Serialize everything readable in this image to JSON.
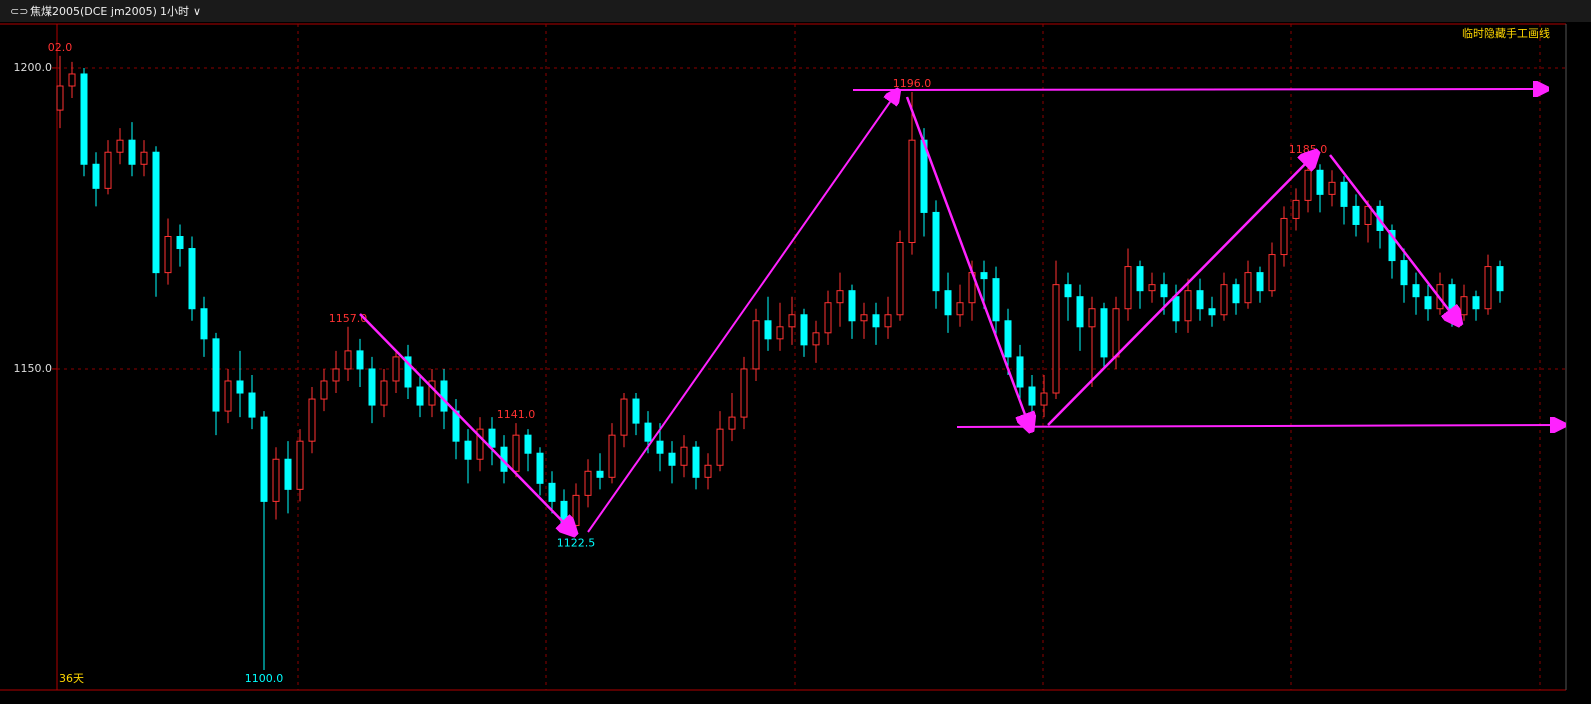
{
  "header": {
    "title": "焦煤2005(DCE jm2005)",
    "period": "1小时",
    "button": "临时隐藏手工画线"
  },
  "chart_data": {
    "type": "candlestick",
    "footer_label": "36天",
    "up_color": "#ff3232",
    "down_color": "#00ffff",
    "ylim": [
      1097,
      1207.3
    ],
    "yticks": [
      {
        "value": 1150,
        "label": "1150.0"
      },
      {
        "value": 1200,
        "label": "1200.0"
      }
    ],
    "grid": true,
    "open": [
      1193,
      1197,
      1199,
      1184,
      1180,
      1186,
      1188,
      1184,
      1186,
      1166,
      1172,
      1170,
      1160,
      1155,
      1143,
      1148,
      1146,
      1142,
      1128,
      1135,
      1130,
      1138,
      1145,
      1148,
      1150,
      1153,
      1150,
      1144,
      1148,
      1152,
      1147,
      1144,
      1148,
      1143,
      1138,
      1135,
      1140,
      1137,
      1133,
      1139,
      1136,
      1131,
      1128,
      1124,
      1129,
      1133,
      1132,
      1139,
      1145,
      1141,
      1138,
      1136,
      1134,
      1137,
      1132,
      1134,
      1140,
      1142,
      1150,
      1158,
      1155,
      1157,
      1159,
      1154,
      1156,
      1161,
      1163,
      1158,
      1159,
      1157,
      1159,
      1171,
      1188,
      1176,
      1163,
      1159,
      1161,
      1166,
      1165,
      1158,
      1152,
      1147,
      1144,
      1146,
      1164,
      1162,
      1157,
      1160,
      1152,
      1160,
      1167,
      1163,
      1164,
      1162,
      1158,
      1163,
      1160,
      1159,
      1164,
      1161,
      1166,
      1163,
      1169,
      1175,
      1178,
      1183,
      1179,
      1181,
      1177,
      1174,
      1177,
      1173,
      1168,
      1164,
      1162,
      1160,
      1164,
      1159,
      1162,
      1160,
      1167
    ],
    "high": [
      1202,
      1201,
      1200,
      1186,
      1188,
      1190,
      1191,
      1188,
      1187,
      1175,
      1174,
      1172,
      1162,
      1156,
      1150,
      1153,
      1149,
      1143,
      1137,
      1138,
      1140,
      1147,
      1150,
      1153,
      1157,
      1155,
      1152,
      1150,
      1153,
      1154,
      1149,
      1150,
      1150,
      1145,
      1140,
      1142,
      1142,
      1139,
      1141,
      1140,
      1137,
      1133,
      1130,
      1131,
      1135,
      1136,
      1141,
      1146,
      1146,
      1143,
      1141,
      1138,
      1139,
      1138,
      1136,
      1143,
      1146,
      1152,
      1160,
      1162,
      1161,
      1162,
      1160,
      1158,
      1163,
      1166,
      1164,
      1161,
      1161,
      1162,
      1173,
      1196,
      1190,
      1178,
      1166,
      1164,
      1168,
      1168,
      1167,
      1160,
      1154,
      1149,
      1149,
      1168,
      1166,
      1164,
      1162,
      1161,
      1162,
      1170,
      1168,
      1166,
      1166,
      1164,
      1165,
      1165,
      1162,
      1166,
      1165,
      1168,
      1167,
      1171,
      1177,
      1180,
      1185,
      1184,
      1183,
      1182,
      1179,
      1178,
      1178,
      1174,
      1170,
      1166,
      1164,
      1166,
      1165,
      1164,
      1163,
      1169,
      1168
    ],
    "low": [
      1190,
      1195,
      1182,
      1177,
      1179,
      1184,
      1182,
      1182,
      1162,
      1164,
      1167,
      1158,
      1152,
      1139,
      1141,
      1142,
      1140,
      1100,
      1125,
      1126,
      1128,
      1136,
      1143,
      1146,
      1148,
      1147,
      1141,
      1142,
      1146,
      1145,
      1142,
      1142,
      1140,
      1135,
      1131,
      1133,
      1134,
      1131,
      1132,
      1133,
      1129,
      1126,
      1123,
      1122.5,
      1127,
      1130,
      1131,
      1137,
      1139,
      1136,
      1133,
      1131,
      1132,
      1130,
      1130,
      1133,
      1138,
      1140,
      1148,
      1153,
      1153,
      1154,
      1152,
      1151,
      1154,
      1157,
      1155,
      1155,
      1154,
      1155,
      1158,
      1169,
      1172,
      1160,
      1156,
      1157,
      1158,
      1160,
      1155,
      1149,
      1145,
      1141,
      1142,
      1145,
      1158,
      1153,
      1147,
      1150,
      1150,
      1158,
      1160,
      1161,
      1159,
      1156,
      1156,
      1158,
      1157,
      1158,
      1159,
      1160,
      1161,
      1162,
      1167,
      1173,
      1176,
      1176,
      1177,
      1174,
      1172,
      1171,
      1170,
      1165,
      1161,
      1159,
      1158,
      1159,
      1157,
      1158,
      1158,
      1159,
      1161
    ],
    "close": [
      1197,
      1199,
      1184,
      1180,
      1186,
      1188,
      1184,
      1186,
      1166,
      1172,
      1170,
      1160,
      1155,
      1143,
      1148,
      1146,
      1142,
      1128,
      1135,
      1130,
      1138,
      1145,
      1148,
      1150,
      1153,
      1150,
      1144,
      1148,
      1152,
      1147,
      1144,
      1148,
      1143,
      1138,
      1135,
      1140,
      1137,
      1133,
      1139,
      1136,
      1131,
      1128,
      1124,
      1129,
      1133,
      1132,
      1139,
      1145,
      1141,
      1138,
      1136,
      1134,
      1137,
      1132,
      1134,
      1140,
      1142,
      1150,
      1158,
      1155,
      1157,
      1159,
      1154,
      1156,
      1161,
      1163,
      1158,
      1159,
      1157,
      1159,
      1171,
      1188,
      1176,
      1163,
      1159,
      1161,
      1166,
      1165,
      1158,
      1152,
      1147,
      1144,
      1146,
      1164,
      1162,
      1157,
      1160,
      1152,
      1160,
      1167,
      1163,
      1164,
      1162,
      1158,
      1163,
      1160,
      1159,
      1164,
      1161,
      1166,
      1163,
      1169,
      1175,
      1178,
      1183,
      1179,
      1181,
      1177,
      1174,
      1177,
      1173,
      1168,
      1164,
      1162,
      1160,
      1164,
      1159,
      1162,
      1160,
      1167,
      1163
    ],
    "annotations": [
      {
        "value": 1202,
        "label": "02.0"
      },
      {
        "value": 1196,
        "label": "1196.0"
      },
      {
        "value": 1185,
        "label": "1185.0"
      },
      {
        "value": 1100,
        "label": "1100.0"
      },
      {
        "value": 1122.5,
        "label": "1122.5"
      },
      {
        "value": 1141,
        "label": "1141.0"
      },
      {
        "value": 1157,
        "label": "1157.0"
      }
    ]
  }
}
